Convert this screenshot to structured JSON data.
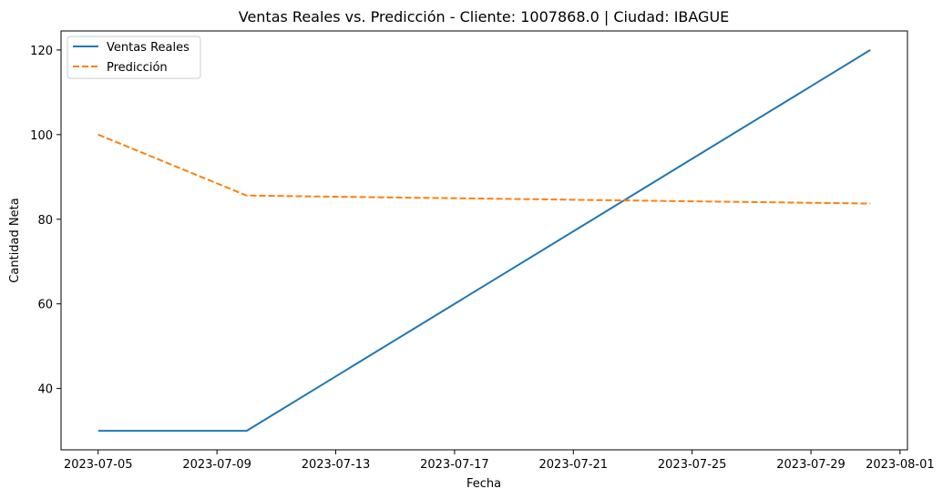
{
  "chart_data": {
    "type": "line",
    "title": "Ventas Reales vs. Predicción - Cliente: 1007868.0 | Ciudad: IBAGUE",
    "xlabel": "Fecha",
    "ylabel": "Cantidad Neta",
    "x_ticks": [
      "2023-07-05",
      "2023-07-09",
      "2023-07-13",
      "2023-07-17",
      "2023-07-21",
      "2023-07-25",
      "2023-07-29",
      "2023-08-01"
    ],
    "y_ticks": [
      40,
      60,
      80,
      100,
      120
    ],
    "xlim": [
      "2023-07-03T18:00",
      "2023-08-01T06:00"
    ],
    "ylim": [
      25.5,
      124.5
    ],
    "grid": false,
    "legend_position": "top-left",
    "series": [
      {
        "name": "Ventas Reales",
        "color": "#1f77b4",
        "style": "solid",
        "points": [
          {
            "x": "2023-07-05",
            "y": 30
          },
          {
            "x": "2023-07-10",
            "y": 30
          },
          {
            "x": "2023-07-31",
            "y": 120
          }
        ]
      },
      {
        "name": "Predicción",
        "color": "#ff7f0e",
        "style": "dashed",
        "points": [
          {
            "x": "2023-07-05",
            "y": 100
          },
          {
            "x": "2023-07-10",
            "y": 85.6
          },
          {
            "x": "2023-07-31",
            "y": 83.7
          }
        ]
      }
    ]
  }
}
